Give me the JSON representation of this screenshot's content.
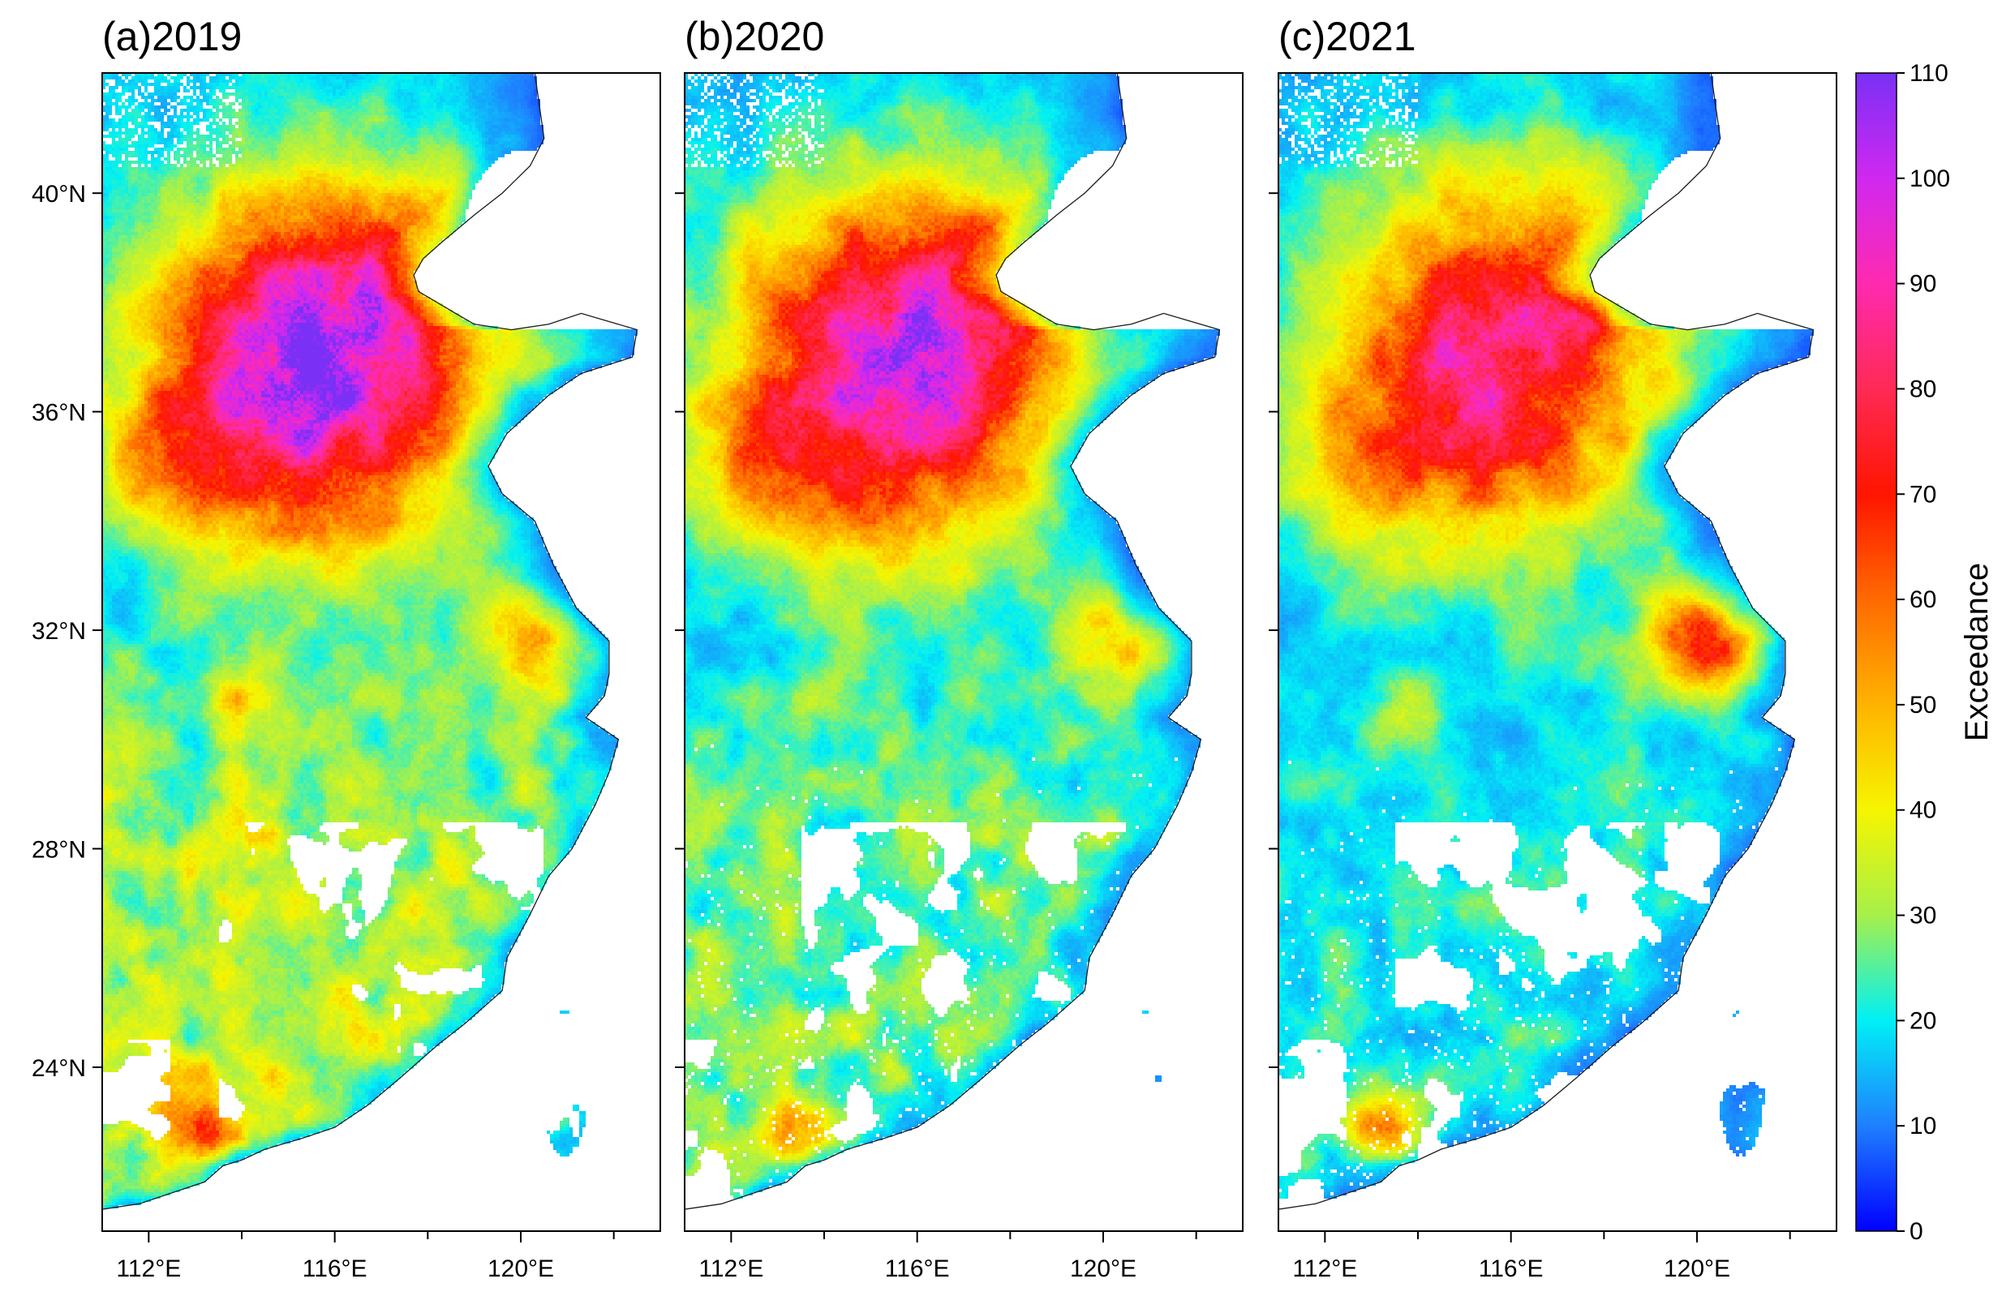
{
  "panels": [
    {
      "id": "a",
      "title": "(a)2019",
      "year": 2019,
      "pollution": {
        "north": 1.0,
        "south": 0.62,
        "south_cov": 0.9,
        "dry_south": 1.0,
        "pearl": 0.9,
        "yrd": 0.55,
        "wuhan": 0.7
      }
    },
    {
      "id": "b",
      "title": "(b)2020",
      "year": 2020,
      "pollution": {
        "north": 0.92,
        "south": 0.42,
        "south_cov": 0.7,
        "dry_south": 0.85,
        "pearl": 0.6,
        "yrd": 0.5,
        "wuhan": 0.4
      }
    },
    {
      "id": "c",
      "title": "(c)2021",
      "year": 2021,
      "pollution": {
        "north": 0.78,
        "south": 0.22,
        "south_cov": 0.45,
        "dry_south": 0.6,
        "pearl": 0.85,
        "yrd": 0.9,
        "wuhan": 0.6
      }
    }
  ],
  "map_extent": {
    "lon": [
      111.0,
      123.0
    ],
    "lat": [
      21.0,
      42.2
    ]
  },
  "x_ticks": [
    {
      "value": 112,
      "label": "112°E"
    },
    {
      "value": 116,
      "label": "116°E"
    },
    {
      "value": 120,
      "label": "120°E"
    }
  ],
  "x_minor_ticks": [
    114,
    118,
    122
  ],
  "y_ticks": [
    {
      "value": 24,
      "label": "24°N"
    },
    {
      "value": 28,
      "label": "28°N"
    },
    {
      "value": 32,
      "label": "32°N"
    },
    {
      "value": 36,
      "label": "36°N"
    },
    {
      "value": 40,
      "label": "40°N"
    }
  ],
  "colorbar": {
    "label": "Exceedance",
    "min": 0,
    "max": 110,
    "ticks": [
      {
        "value": 0,
        "label": "0"
      },
      {
        "value": 10,
        "label": "10"
      },
      {
        "value": 20,
        "label": "20"
      },
      {
        "value": 30,
        "label": "30"
      },
      {
        "value": 40,
        "label": "40"
      },
      {
        "value": 50,
        "label": "50"
      },
      {
        "value": 60,
        "label": "60"
      },
      {
        "value": 70,
        "label": "70"
      },
      {
        "value": 80,
        "label": "80"
      },
      {
        "value": 90,
        "label": "90"
      },
      {
        "value": 100,
        "label": "100"
      },
      {
        "value": 110,
        "label": "110"
      }
    ],
    "color_stops": [
      {
        "value": 0,
        "color": "#0000ff"
      },
      {
        "value": 10,
        "color": "#1f7fff"
      },
      {
        "value": 20,
        "color": "#00f0f5"
      },
      {
        "value": 30,
        "color": "#a6f04a"
      },
      {
        "value": 40,
        "color": "#f6f500"
      },
      {
        "value": 50,
        "color": "#ffb300"
      },
      {
        "value": 60,
        "color": "#ff6a00"
      },
      {
        "value": 70,
        "color": "#ff1500"
      },
      {
        "value": 80,
        "color": "#ff2a55"
      },
      {
        "value": 90,
        "color": "#ff2ab0"
      },
      {
        "value": 100,
        "color": "#d028f0"
      },
      {
        "value": 110,
        "color": "#7a30f5"
      }
    ]
  }
}
